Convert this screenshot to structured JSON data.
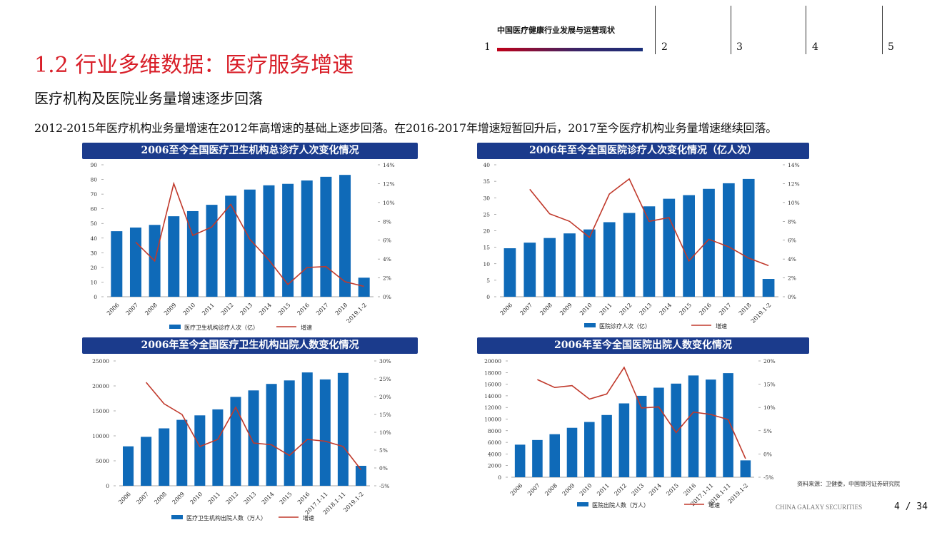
{
  "nav": {
    "title": "中国医疗健康行业发展与运营现状",
    "items": [
      "1",
      "2",
      "3",
      "4",
      "5"
    ]
  },
  "page_title": "1.2 行业多维数据：医疗服务增速",
  "subtitle": "医疗机构及医院业务量增速逐步回落",
  "description": "2012-2015年医疗机构业务量增速在2012年高增速的基础上逐步回落。在2016-2017年增速短暂回升后，2017至今医疗机构业务量增速继续回落。",
  "colors": {
    "bar": "#0f6ab8",
    "line": "#c0392b",
    "banner": "#1b3b8c",
    "title": "#d81e28"
  },
  "chart_data": [
    {
      "type": "bar",
      "title": "2006至今全国医疗卫生机构总诊疗人次变化情况",
      "categories": [
        "2006",
        "2007",
        "2008",
        "2009",
        "2010",
        "2011",
        "2012",
        "2013",
        "2014",
        "2015",
        "2016",
        "2017",
        "2018",
        "2019.1-2"
      ],
      "series": [
        {
          "name": "医疗卫生机构诊疗人次（亿）",
          "type": "bar",
          "axis": "left",
          "values": [
            44.7,
            47.2,
            49.0,
            54.9,
            58.4,
            62.7,
            68.9,
            73.1,
            76.0,
            77.0,
            79.3,
            81.8,
            83.1,
            13.0
          ]
        },
        {
          "name": "增速",
          "type": "line",
          "axis": "right",
          "values": [
            null,
            5.8,
            3.8,
            12.0,
            6.5,
            7.4,
            9.8,
            6.1,
            3.9,
            1.3,
            3.1,
            3.2,
            1.6,
            1.1
          ]
        }
      ],
      "left_axis": {
        "min": 0,
        "max": 90,
        "ticks": [
          "0",
          "10",
          "20",
          "30",
          "40",
          "50",
          "60",
          "70",
          "80",
          "90"
        ]
      },
      "right_axis": {
        "min": 0,
        "max": 14,
        "ticks": [
          "0%",
          "2%",
          "4%",
          "6%",
          "8%",
          "10%",
          "12%",
          "14%"
        ]
      },
      "legend": [
        "医疗卫生机构诊疗人次（亿）",
        "增速"
      ]
    },
    {
      "type": "bar",
      "title": "2006年至今全国医院诊疗人次变化情况（亿人次）",
      "categories": [
        "2006",
        "2007",
        "2008",
        "2009",
        "2010",
        "2011",
        "2012",
        "2013",
        "2014",
        "2015",
        "2016",
        "2017",
        "2018",
        "2019.1-2"
      ],
      "series": [
        {
          "name": "医院诊疗人次（亿）",
          "type": "bar",
          "axis": "left",
          "values": [
            14.7,
            16.4,
            17.8,
            19.2,
            20.4,
            22.6,
            25.4,
            27.4,
            29.7,
            30.8,
            32.7,
            34.4,
            35.7,
            5.4
          ]
        },
        {
          "name": "增速",
          "type": "line",
          "axis": "right",
          "values": [
            null,
            11.4,
            8.8,
            8.0,
            6.3,
            10.9,
            12.5,
            8.0,
            8.4,
            3.8,
            6.1,
            5.3,
            4.1,
            3.3
          ]
        }
      ],
      "left_axis": {
        "min": 0,
        "max": 40,
        "ticks": [
          "0",
          "5",
          "10",
          "15",
          "20",
          "25",
          "30",
          "35",
          "40"
        ]
      },
      "right_axis": {
        "min": 0,
        "max": 14,
        "ticks": [
          "0%",
          "2%",
          "4%",
          "6%",
          "8%",
          "10%",
          "12%",
          "14%"
        ]
      },
      "legend": [
        "医院诊疗人次（亿）",
        "增速"
      ]
    },
    {
      "type": "bar",
      "title": "2006年至今全国医疗卫生机构出院人数变化情况",
      "categories": [
        "2006",
        "2007",
        "2008",
        "2009",
        "2010",
        "2011",
        "2012",
        "2013",
        "2014",
        "2015",
        "2016",
        "2017.1-11",
        "2018.1-11",
        "2019.1-2"
      ],
      "series": [
        {
          "name": "医疗卫生机构出院人数（万人）",
          "type": "bar",
          "axis": "left",
          "values": [
            7900,
            9800,
            11500,
            13200,
            14100,
            15300,
            17800,
            19100,
            20400,
            21100,
            22700,
            21300,
            22600,
            4000
          ]
        },
        {
          "name": "增速",
          "type": "line",
          "axis": "right",
          "values": [
            null,
            24.0,
            18.0,
            15.0,
            6.0,
            8.0,
            17.0,
            7.0,
            6.5,
            3.5,
            8.0,
            7.5,
            6.0,
            -0.5
          ]
        }
      ],
      "left_axis": {
        "min": 0,
        "max": 25000,
        "ticks": [
          "0",
          "5000",
          "10000",
          "15000",
          "20000",
          "25000"
        ]
      },
      "right_axis": {
        "min": -5,
        "max": 30,
        "ticks": [
          "-5%",
          "0%",
          "5%",
          "10%",
          "15%",
          "20%",
          "25%",
          "30%"
        ]
      },
      "legend": [
        "医疗卫生机构出院人数（万人）",
        "增速"
      ]
    },
    {
      "type": "bar",
      "title": "2006年至今全国医院出院人数变化情况",
      "categories": [
        "2006",
        "2007",
        "2008",
        "2009",
        "2010",
        "2011",
        "2012",
        "2013",
        "2014",
        "2015",
        "2016",
        "2017.1-11",
        "2018.1-11",
        "2019.1-2"
      ],
      "series": [
        {
          "name": "医院出院人数（万人）",
          "type": "bar",
          "axis": "left",
          "values": [
            5600,
            6400,
            7400,
            8500,
            9500,
            10700,
            12700,
            14000,
            15400,
            16100,
            17500,
            16800,
            17900,
            2900
          ]
        },
        {
          "name": "增速",
          "type": "line",
          "axis": "right",
          "values": [
            null,
            16.0,
            14.3,
            14.7,
            11.8,
            12.9,
            18.6,
            9.9,
            10.1,
            4.6,
            9.0,
            8.5,
            7.4,
            -1.0
          ]
        }
      ],
      "left_axis": {
        "min": 0,
        "max": 20000,
        "ticks": [
          "0",
          "2000",
          "4000",
          "6000",
          "8000",
          "10000",
          "12000",
          "14000",
          "16000",
          "18000",
          "20000"
        ]
      },
      "right_axis": {
        "min": -5,
        "max": 20,
        "ticks": [
          "-5%",
          "0%",
          "5%",
          "10%",
          "15%",
          "20%"
        ]
      },
      "legend": [
        "医院出院人数（万人）",
        "增速"
      ]
    }
  ],
  "source": "资料来源：卫健委，中国银河证券研究院",
  "footer": {
    "brand": "CHINA GALAXY SECURITIES",
    "page": "4 / 34"
  }
}
